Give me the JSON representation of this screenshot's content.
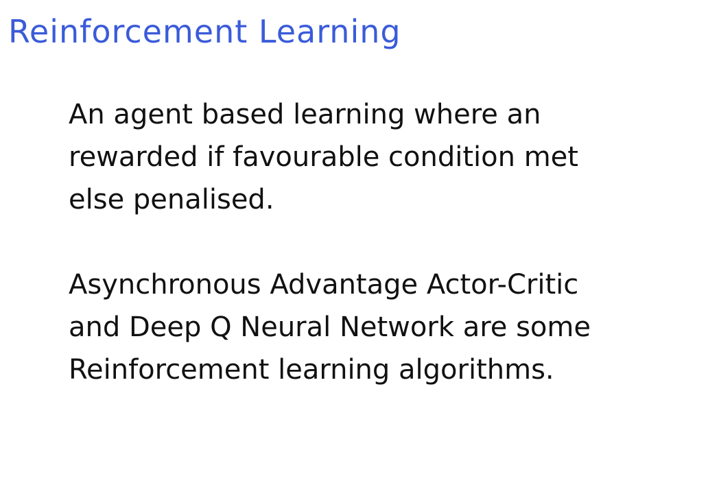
{
  "note": {
    "title": "Reinforcement Learning",
    "paragraphs": [
      {
        "lines": [
          "An agent based learning where an",
          "rewarded if favourable condition met",
          "else penalised."
        ]
      },
      {
        "lines": [
          "Asynchronous Advantage Actor-Critic",
          "and Deep Q Neural Network are some",
          "Reinforcement learning algorithms."
        ]
      }
    ]
  },
  "colors": {
    "title": "#3a5bd9",
    "text": "#111111",
    "background": "#ffffff"
  }
}
